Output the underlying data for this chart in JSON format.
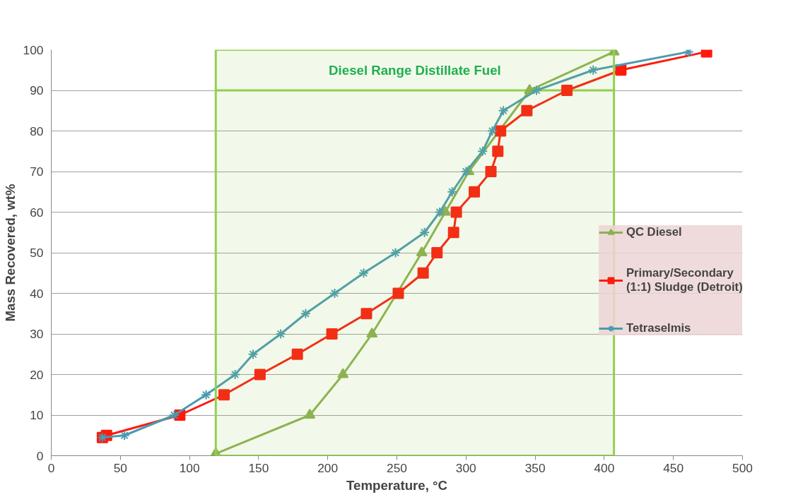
{
  "chart_data": {
    "type": "line",
    "xlabel": "Temperature, °C",
    "ylabel": "Mass Recovered, wt%",
    "xlim": [
      0,
      500
    ],
    "xticks": [
      0,
      50,
      100,
      150,
      200,
      250,
      300,
      350,
      400,
      450,
      500
    ],
    "ylim": [
      0,
      100
    ],
    "yticks": [
      0,
      10,
      20,
      30,
      40,
      50,
      60,
      70,
      80,
      90,
      100
    ],
    "grid": "y",
    "legend": "right",
    "bands": [
      {
        "axis": "x",
        "from": 119,
        "to": 407,
        "label": "Diesel Range Distillate Fuel",
        "color": "#92d050"
      }
    ],
    "ref_lines": [
      {
        "axis": "y",
        "value": 90,
        "color": "#92d050"
      }
    ],
    "series": [
      {
        "name": "QC Diesel",
        "color": "#8db050",
        "marker": "triangle",
        "x": [
          119,
          187,
          211,
          232,
          268,
          285,
          302,
          346,
          407
        ],
        "values": [
          0.5,
          10,
          20,
          30,
          50,
          60,
          70,
          90,
          99.5
        ]
      },
      {
        "name": "Primary/Secondary (1:1) Sludge (Detroit)",
        "color": "#ff1a0d",
        "marker": "square",
        "x": [
          37,
          40,
          93,
          125,
          151,
          178,
          203,
          228,
          251,
          269,
          279,
          291,
          293,
          306,
          318,
          323,
          325,
          344,
          373,
          412,
          474
        ],
        "values": [
          4.5,
          5,
          10,
          15,
          20,
          25,
          30,
          35,
          40,
          45,
          50,
          55,
          60,
          65,
          70,
          75,
          80,
          85,
          90,
          95,
          99.5
        ]
      },
      {
        "name": "Tetraselmis",
        "color": "#4a9ab0",
        "marker": "cross",
        "x": [
          37,
          53,
          89,
          112,
          133,
          146,
          166,
          184,
          205,
          226,
          249,
          270,
          281,
          290,
          300,
          312,
          319,
          327,
          351,
          392,
          461
        ],
        "values": [
          4.5,
          5,
          10,
          15,
          20,
          25,
          30,
          35,
          40,
          45,
          50,
          55,
          60,
          65,
          70,
          75,
          80,
          85,
          90,
          95,
          99.5
        ]
      }
    ]
  }
}
